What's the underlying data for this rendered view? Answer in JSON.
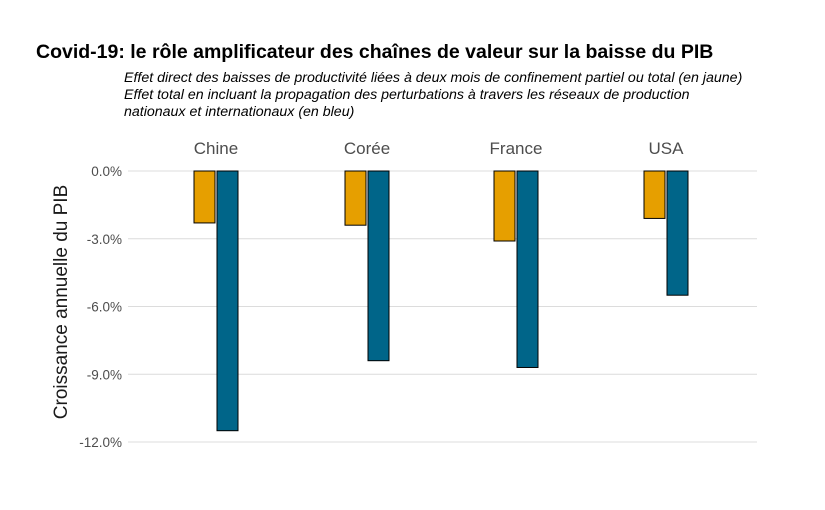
{
  "chart_data": {
    "type": "bar",
    "title": "Covid-19: le rôle amplificateur des chaînes de valeur sur la baisse du PIB",
    "subtitle": [
      "Effet direct des baisses de productivité liées à deux mois de confinement partiel ou total (en jaune)",
      "Effet total en incluant la propagation des perturbations à travers les réseaux de production",
      "nationaux et internationaux (en bleu)"
    ],
    "categories": [
      "Chine",
      "Corée",
      "France",
      "USA"
    ],
    "series": [
      {
        "color": "#E69F00",
        "values": [
          -2.3,
          -2.4,
          -3.1,
          -2.1
        ]
      },
      {
        "color": "#006589",
        "values": [
          -11.5,
          -8.4,
          -8.7,
          -5.5
        ]
      }
    ],
    "ylabel": "Croissance annuelle du PIB",
    "yticks": [
      0,
      -3,
      -6,
      -9,
      -12
    ],
    "ytick_labels": [
      "0.0%",
      "-3.0%",
      "-6.0%",
      "-9.0%",
      "-12.0%"
    ],
    "ylim": [
      -12,
      0
    ],
    "grid": true
  }
}
